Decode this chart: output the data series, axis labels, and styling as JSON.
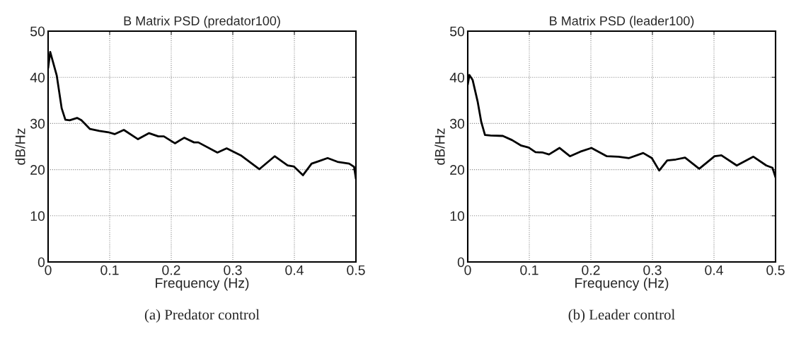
{
  "chart_data": [
    {
      "type": "line",
      "title": "B Matrix PSD (predator100)",
      "xlabel": "Frequency (Hz)",
      "ylabel": "dB/Hz",
      "annotations": [
        "(a) Predator control"
      ],
      "xlim": [
        0,
        0.5
      ],
      "ylim": [
        0,
        50
      ],
      "xticks": [
        0,
        0.1,
        0.2,
        0.3,
        0.4,
        0.5
      ],
      "yticks": [
        0,
        10,
        20,
        30,
        40,
        50
      ],
      "grid": true,
      "legend": false,
      "line_style": "solid",
      "marker": "none",
      "series": [
        {
          "color": "#000000",
          "x": [
            0,
            0.0034,
            0.014,
            0.022,
            0.028,
            0.035,
            0.047,
            0.054,
            0.068,
            0.083,
            0.098,
            0.108,
            0.123,
            0.146,
            0.164,
            0.179,
            0.188,
            0.206,
            0.221,
            0.237,
            0.244,
            0.275,
            0.29,
            0.313,
            0.343,
            0.368,
            0.389,
            0.399,
            0.414,
            0.428,
            0.439,
            0.454,
            0.47,
            0.489,
            0.497,
            0.5
          ],
          "values": [
            42,
            45.5,
            40.4,
            33.3,
            30.8,
            30.7,
            31.2,
            30.7,
            28.8,
            28.4,
            28.1,
            27.7,
            28.6,
            26.6,
            27.9,
            27.2,
            27.2,
            25.7,
            26.9,
            25.9,
            25.9,
            23.7,
            24.6,
            23.1,
            20.1,
            22.9,
            20.9,
            20.7,
            18.8,
            21.3,
            21.8,
            22.5,
            21.7,
            21.3,
            20.6,
            18
          ]
        }
      ]
    },
    {
      "type": "line",
      "title": "B Matrix PSD (leader100)",
      "xlabel": "Frequency (Hz)",
      "ylabel": "dB/Hz",
      "annotations": [
        "(b) Leader control"
      ],
      "xlim": [
        0,
        0.5
      ],
      "ylim": [
        0,
        50
      ],
      "xticks": [
        0,
        0.1,
        0.2,
        0.3,
        0.4,
        0.5
      ],
      "yticks": [
        0,
        10,
        20,
        30,
        40,
        50
      ],
      "grid": true,
      "legend": false,
      "line_style": "solid",
      "marker": "none",
      "series": [
        {
          "color": "#000000",
          "x": [
            0,
            0.0027,
            0.008,
            0.016,
            0.022,
            0.028,
            0.037,
            0.057,
            0.072,
            0.087,
            0.099,
            0.11,
            0.122,
            0.132,
            0.149,
            0.166,
            0.183,
            0.201,
            0.226,
            0.245,
            0.262,
            0.285,
            0.299,
            0.311,
            0.324,
            0.338,
            0.353,
            0.376,
            0.401,
            0.412,
            0.437,
            0.464,
            0.485,
            0.495,
            0.5
          ],
          "values": [
            38.4,
            40.5,
            39.4,
            34.8,
            30.3,
            27.5,
            27.4,
            27.3,
            26.4,
            25.2,
            24.8,
            23.8,
            23.7,
            23.3,
            24.7,
            22.9,
            23.9,
            24.7,
            22.9,
            22.8,
            22.5,
            23.6,
            22.5,
            19.8,
            22.0,
            22.2,
            22.6,
            20.2,
            22.9,
            23.1,
            20.9,
            22.8,
            20.9,
            20.4,
            18.3
          ]
        }
      ]
    }
  ]
}
